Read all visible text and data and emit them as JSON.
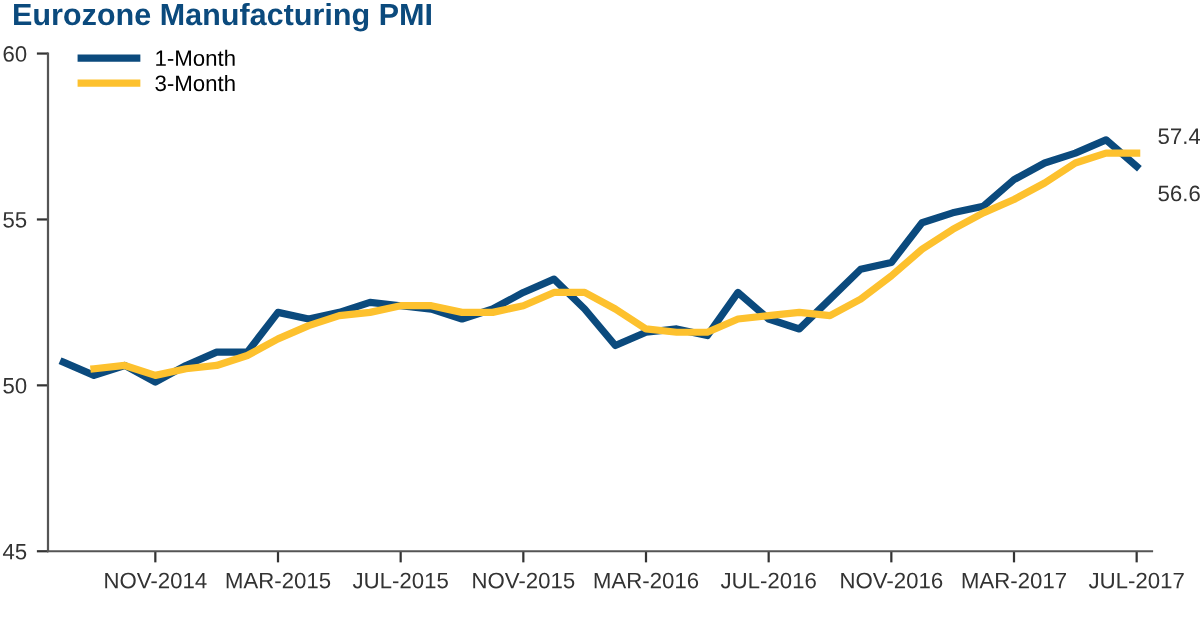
{
  "chart_data": {
    "type": "line",
    "title": "Eurozone Manufacturing PMI",
    "categories": [
      null,
      null,
      null,
      "NOV-2014",
      null,
      null,
      null,
      "MAR-2015",
      null,
      null,
      null,
      "JUL-2015",
      null,
      null,
      null,
      "NOV-2015",
      null,
      null,
      null,
      "MAR-2016",
      null,
      null,
      null,
      "JUL-2016",
      null,
      null,
      null,
      "NOV-2016",
      null,
      null,
      null,
      "MAR-2017",
      null,
      null,
      null,
      "JUL-2017"
    ],
    "series": [
      {
        "name": "1-Month",
        "color": "#0b4a7d",
        "values": [
          50.7,
          50.3,
          50.6,
          50.1,
          50.6,
          51.0,
          51.0,
          52.2,
          52.0,
          52.2,
          52.5,
          52.4,
          52.3,
          52.0,
          52.3,
          52.8,
          53.2,
          52.3,
          51.2,
          51.6,
          51.7,
          51.5,
          52.8,
          52.0,
          51.7,
          52.6,
          53.5,
          53.7,
          54.9,
          55.2,
          55.4,
          56.2,
          56.7,
          57.0,
          57.4,
          56.6
        ]
      },
      {
        "name": "3-Month",
        "color": "#fdc12e",
        "values": [
          null,
          50.5,
          50.6,
          50.3,
          50.5,
          50.6,
          50.9,
          51.4,
          51.8,
          52.1,
          52.2,
          52.4,
          52.4,
          52.2,
          52.2,
          52.4,
          52.8,
          52.8,
          52.3,
          51.7,
          51.6,
          51.6,
          52.0,
          52.1,
          52.2,
          52.1,
          52.6,
          53.3,
          54.1,
          54.7,
          55.2,
          55.6,
          56.1,
          56.7,
          57.0,
          57.0
        ]
      }
    ],
    "ylim": [
      45,
      60
    ],
    "yticks": [
      45,
      50,
      55,
      60
    ],
    "grid": false,
    "legend": "top left",
    "marker": "none",
    "line_style": "solid",
    "annotations": [
      "57.4",
      "56.6"
    ]
  }
}
